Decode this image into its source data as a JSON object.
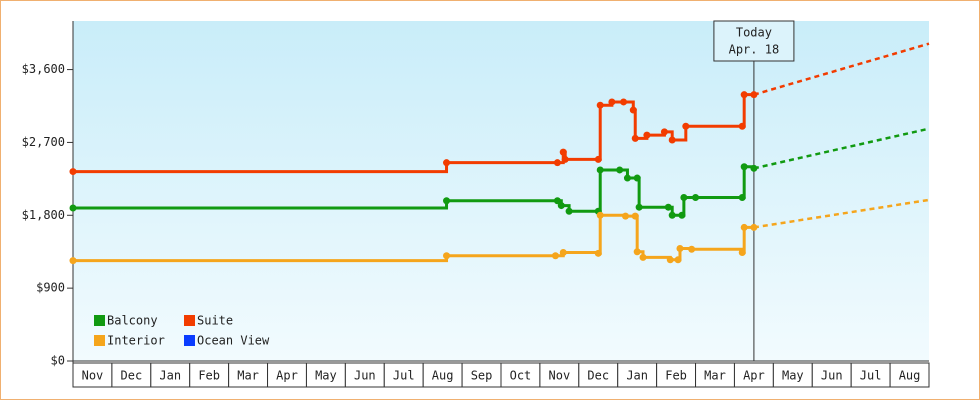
{
  "chart_data": {
    "type": "step",
    "categories": [
      "Nov",
      "Dec",
      "Jan",
      "Feb",
      "Mar",
      "Apr",
      "May",
      "Jun",
      "Jul",
      "Aug",
      "Sep",
      "Oct",
      "Nov",
      "Dec",
      "Jan",
      "Feb",
      "Mar",
      "Apr",
      "May",
      "Jun",
      "Jul",
      "Aug"
    ],
    "xlim": [
      0,
      22
    ],
    "ylim": [
      0,
      4200
    ],
    "yticks": [
      {
        "value": 0,
        "label": "$0"
      },
      {
        "value": 900,
        "label": "$900"
      },
      {
        "value": 1800,
        "label": "$1,800"
      },
      {
        "value": 2700,
        "label": "$2,700"
      },
      {
        "value": 3600,
        "label": "$3,600"
      }
    ],
    "today": {
      "x": 17.5,
      "label": [
        "Today",
        "Apr. 18"
      ]
    },
    "series": [
      {
        "name": "Balcony",
        "color": "#119a11",
        "x": [
          0,
          9.6,
          12.45,
          12.55,
          12.75,
          13.5,
          13.55,
          14.05,
          14.25,
          14.5,
          14.55,
          15.3,
          15.4,
          15.65,
          15.7,
          16,
          17.2,
          17.25,
          17.5
        ],
        "values": [
          1890,
          1980,
          1980,
          1920,
          1850,
          1850,
          2360,
          2360,
          2260,
          2260,
          1900,
          1900,
          1800,
          1800,
          2020,
          2020,
          2020,
          2400,
          2380
        ],
        "forecast": {
          "x": 22,
          "value": 2870
        }
      },
      {
        "name": "Suite",
        "color": "#f23c00",
        "x": [
          0,
          9.6,
          12.45,
          12.6,
          12.65,
          13.5,
          13.55,
          13.85,
          14.15,
          14.4,
          14.45,
          14.75,
          15.2,
          15.4,
          15.75,
          17.2,
          17.25,
          17.5
        ],
        "values": [
          2340,
          2450,
          2450,
          2580,
          2490,
          2490,
          3160,
          3200,
          3200,
          3100,
          2750,
          2790,
          2830,
          2730,
          2900,
          2900,
          3290,
          3290
        ],
        "forecast": {
          "x": 22,
          "value": 3920
        }
      },
      {
        "name": "Interior",
        "color": "#f5a51c",
        "x": [
          0,
          9.6,
          12.4,
          12.6,
          13.5,
          13.55,
          14.2,
          14.45,
          14.5,
          14.65,
          15.35,
          15.55,
          15.6,
          15.9,
          17.2,
          17.25,
          17.5
        ],
        "values": [
          1240,
          1300,
          1300,
          1340,
          1330,
          1800,
          1790,
          1790,
          1350,
          1280,
          1250,
          1250,
          1390,
          1380,
          1340,
          1650,
          1650
        ],
        "forecast": {
          "x": 22,
          "value": 1990
        }
      },
      {
        "name": "Ocean View",
        "color": "#0a3cff",
        "x": [],
        "values": []
      }
    ]
  }
}
